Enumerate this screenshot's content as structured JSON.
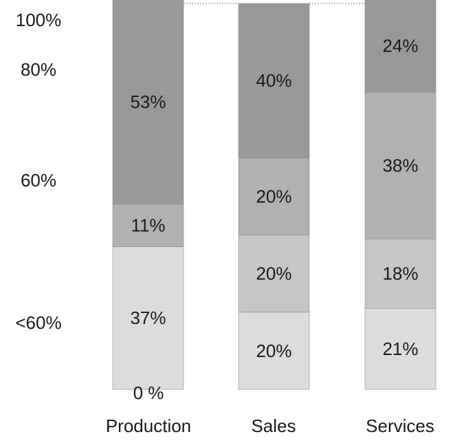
{
  "chart_data": {
    "type": "bar",
    "stacked": true,
    "percent": true,
    "categories": [
      "Production",
      "Sales",
      "Services"
    ],
    "series": [
      {
        "values": [
          37,
          20,
          21
        ],
        "labels": [
          "37%",
          "20%",
          "21%"
        ]
      },
      {
        "values": [
          0,
          20,
          18
        ],
        "labels": [
          "",
          "20%",
          "18%"
        ]
      },
      {
        "values": [
          11,
          20,
          38
        ],
        "labels": [
          "11%",
          "20%",
          "38%"
        ]
      },
      {
        "values": [
          53,
          40,
          24
        ],
        "labels": [
          "53%",
          "40%",
          "24%"
        ]
      }
    ],
    "left_labels": [
      "100%",
      "80%",
      "60%",
      "<60%"
    ],
    "zero_label": "0 %",
    "colors": [
      "#dcdcdc",
      "#c6c6c6",
      "#b1b1b1",
      "#999999"
    ],
    "ylim": [
      0,
      100
    ],
    "grid": false,
    "legend": "none"
  }
}
